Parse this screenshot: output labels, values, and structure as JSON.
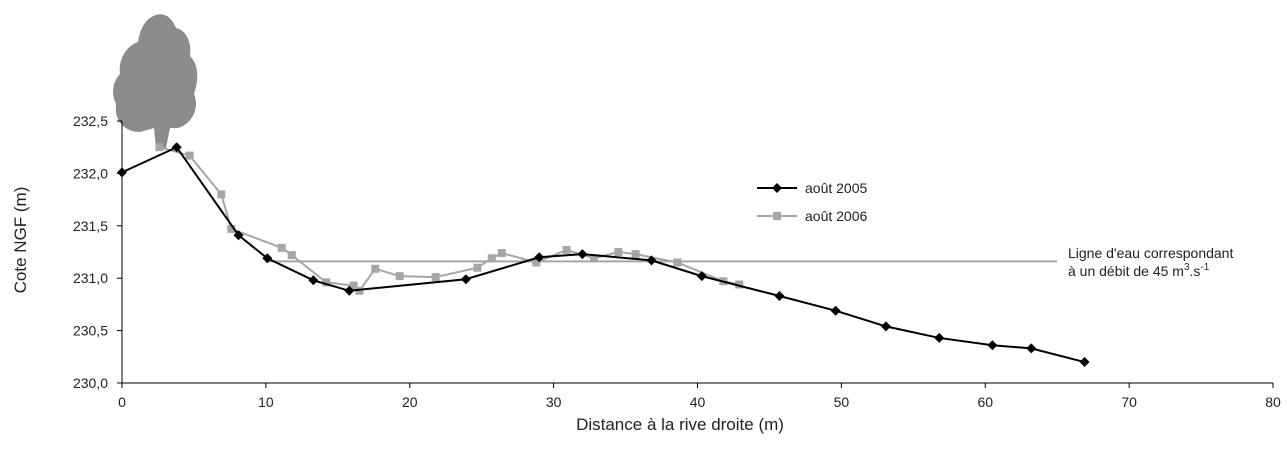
{
  "chart_data": {
    "type": "line",
    "xlabel": "Distance à la rive droite (m)",
    "ylabel": "Cote NGF (m)",
    "xlim": [
      0,
      80
    ],
    "xticks": [
      0,
      10,
      20,
      30,
      40,
      50,
      60,
      70,
      80
    ],
    "ylim": [
      230.0,
      232.5
    ],
    "yticks": [
      {
        "value": 230.0,
        "label": "230,0"
      },
      {
        "value": 230.5,
        "label": "230,5"
      },
      {
        "value": 231.0,
        "label": "231,0"
      },
      {
        "value": 231.5,
        "label": "231,5"
      },
      {
        "value": 232.0,
        "label": "232,0"
      },
      {
        "value": 232.5,
        "label": "232,5"
      }
    ],
    "series": [
      {
        "name": "août 2005",
        "color": "#000000",
        "marker": "diamond",
        "x": [
          0,
          3.8,
          8.1,
          10.1,
          13.3,
          15.8,
          23.9,
          29.0,
          32.0,
          36.8,
          40.3,
          45.7,
          49.6,
          53.1,
          56.8,
          60.5,
          63.2,
          66.9
        ],
        "values": [
          232.01,
          232.25,
          231.41,
          231.19,
          230.98,
          230.88,
          230.99,
          231.2,
          231.23,
          231.17,
          231.02,
          230.83,
          230.69,
          230.54,
          230.43,
          230.36,
          230.33,
          230.2
        ]
      },
      {
        "name": "août 2006",
        "color": "#a6a6a6",
        "marker": "square",
        "x": [
          2.6,
          4.7,
          6.9,
          7.6,
          11.1,
          11.8,
          14.2,
          16.1,
          16.5,
          17.6,
          19.3,
          21.8,
          24.7,
          25.7,
          26.4,
          28.8,
          30.9,
          32.8,
          34.5,
          35.7,
          38.6,
          41.8,
          42.9
        ],
        "values": [
          232.25,
          232.17,
          231.8,
          231.47,
          231.29,
          231.22,
          230.96,
          230.93,
          230.88,
          231.09,
          231.02,
          231.01,
          231.1,
          231.19,
          231.24,
          231.15,
          231.27,
          231.19,
          231.25,
          231.23,
          231.15,
          230.97,
          230.94
        ]
      }
    ],
    "water_line": {
      "x": [
        10,
        65
      ],
      "y": 231.16,
      "color": "#a6a6a6",
      "label_line1": "Ligne d'eau correspondant",
      "label_line2": "à un débit de 45 m",
      "label_sup1": "3",
      "label_mid": ".s",
      "label_sup2": "-1"
    }
  }
}
